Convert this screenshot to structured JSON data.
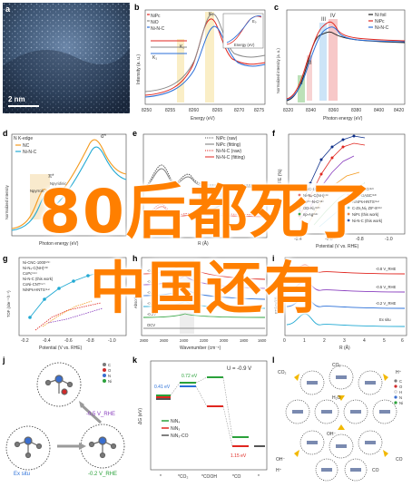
{
  "overlay": {
    "line1": "80后都死了",
    "line2": "中国还有"
  },
  "panels": {
    "a": {
      "label": "a",
      "scale_text": "2 nm"
    },
    "b": {
      "label": "b",
      "ylabel": "Intensity (a. u.)",
      "xlabel": "Energy (eV)",
      "legend": [
        "NiPc",
        "NiO",
        "Ni-N-C"
      ],
      "xticks": [
        "8250",
        "8255",
        "8260",
        "8265",
        "8270",
        "8275"
      ],
      "annot_k1": "K₁",
      "annot_k2": "K₂",
      "annot_k3": "K₃",
      "inset_label": "E₀",
      "inset_xlabel": "Energy (eV)"
    },
    "c": {
      "label": "c",
      "ylabel": "Normalized intensity (a. u.)",
      "xlabel": "Photon energy (eV)",
      "legend": [
        "Ni foil",
        "NiPc",
        "Ni-N-C"
      ],
      "xticks": [
        "8320",
        "8340",
        "8360",
        "8380",
        "8400",
        "8420"
      ],
      "roman": [
        "I",
        "II",
        "III",
        "IV"
      ]
    },
    "d": {
      "label": "d",
      "title": "N K-edge",
      "ylabel": "Normalized intensity",
      "xlabel": "Photon energy (eV)",
      "legend": [
        "NC",
        "Ni-N-C"
      ],
      "annots": [
        "σ*",
        "π*",
        "Npyridinic",
        "Npyrrolic",
        "Ngraphitic"
      ]
    },
    "e": {
      "label": "e",
      "legend": [
        "NiPc (raw)",
        "NiPc (fitting)",
        "Ni-N-C (raw)",
        "Ni-N-C (fitting)"
      ],
      "xlabel": "R (Å)"
    },
    "f": {
      "label": "f",
      "ylabel": "FE (%)",
      "xlabel": "Potential (V vs. RHE)",
      "xticks": [
        "-0.4",
        "-0.6",
        "-0.8",
        "-1.0"
      ],
      "legend": [
        "CNC-1000⁽²⁹⁾",
        "Ni-N₄-C(NH)⁽³¹⁾",
        "Fe³⁺-N-C⁽¹⁵⁾",
        "OD-Al₂⁽⁵⁰⁾",
        "np-Ag⁽⁵¹⁾",
        "A-Ni-NSG⁽⁵²⁾",
        "NiFe-DASC⁽⁵³⁾",
        "NiNPs-HNTS⁽⁵⁴⁾",
        "C-Zn₁Ni₃ ZIF-8⁽⁵⁵⁾",
        "NiPc (this work)",
        "Ni-N-C (this work)"
      ]
    },
    "g": {
      "label": "g",
      "ylabel": "TOF (site⁻¹ h⁻¹)",
      "xlabel": "Potential (V vs. RHE)",
      "xticks": [
        "-0.2",
        "-0.4",
        "-0.6",
        "-0.8",
        "-1.0"
      ],
      "legend": [
        "Ni-CNC-1000⁽²⁹⁾",
        "Ni-N₄-C(NH)⁽³¹⁾",
        "CoPc⁽⁵⁶⁾",
        "Ni-N-C (this work)",
        "CoNi-CNT⁽⁵⁷⁾",
        "NiNPs-HNTS⁽⁵⁴⁾"
      ]
    },
    "h": {
      "label": "h",
      "ylabel": "Absorbance",
      "xlabel": "Wavenumber (cm⁻¹)",
      "xticks": [
        "2800",
        "2600",
        "2400",
        "2200",
        "2000",
        "1800",
        "1600"
      ],
      "curve_labels": [
        "-0.6V",
        "-0.5V",
        "-0.4V",
        "-0.3V",
        "-0.2V",
        "OCV"
      ]
    },
    "i": {
      "label": "i",
      "ylabel": "FT(k³χ(k))",
      "xlabel": "R (Å)",
      "xticks": [
        "0",
        "1",
        "2",
        "3",
        "4",
        "5",
        "6"
      ],
      "curve_labels": [
        "-0.8 V_RHE",
        "-0.5 V_RHE",
        "-0.2 V_RHE",
        "Ex situ"
      ]
    },
    "j": {
      "label": "j",
      "legend": [
        "C",
        "O",
        "N",
        "Ni"
      ],
      "state_ex": "Ex situ",
      "state_mid": "-0.2 V_RHE",
      "state_top": "-0.5 V_RHE"
    },
    "k": {
      "label": "k",
      "ylabel": "ΔG (eV)",
      "u_label": "U = -0.9 V",
      "e1": "0.41 eV",
      "e2": "0.72 eV",
      "e3": "1.15 eV",
      "legend": [
        "NiN₄",
        "NiN₃",
        "NiN₃-CO"
      ],
      "xticks": [
        "*",
        "*CO₂",
        "*COOH",
        "*CO",
        "*"
      ]
    },
    "l": {
      "label": "l",
      "species": [
        "CO₂",
        "H⁺",
        "OH⁻",
        "CO",
        "H₂O",
        "CO₂",
        "H⁺",
        "CO",
        "OH⁻"
      ],
      "legend": [
        "C",
        "O",
        "H",
        "N",
        "Ni"
      ]
    }
  },
  "colors": {
    "overlay": "#ff7f00",
    "red": "#e0261f",
    "green": "#2aa13a",
    "blue": "#2a6fd8",
    "gray": "#8a8a8a",
    "orange": "#f39a1e",
    "cyan": "#21a9d3",
    "purple": "#8a3fbf",
    "dark": "#222222"
  }
}
